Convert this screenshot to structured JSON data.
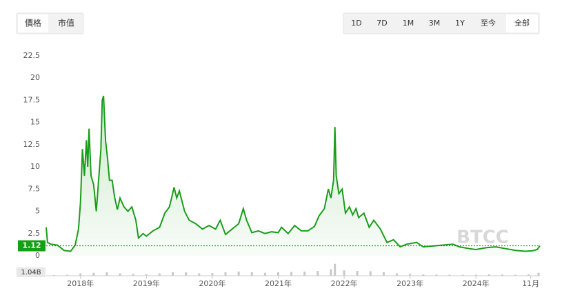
{
  "controls": {
    "left": [
      "價格",
      "市值"
    ],
    "right": [
      "1D",
      "7D",
      "1M",
      "3M",
      "1Y",
      "至今",
      "全部"
    ],
    "watermark": "BTCC"
  },
  "chart_data": [
    {
      "type": "line",
      "color": "#1a9c1a",
      "current_price": 1.12,
      "xlim": [
        2017.48,
        2024.97
      ],
      "xticks": [
        {
          "value": 2018,
          "label": "2018年"
        },
        {
          "value": 2019,
          "label": "2019年"
        },
        {
          "value": 2020,
          "label": "2020年"
        },
        {
          "value": 2021,
          "label": "2021年"
        },
        {
          "value": 2022,
          "label": "2022年"
        },
        {
          "value": 2023,
          "label": "2023年"
        },
        {
          "value": 2024,
          "label": "2024年"
        },
        {
          "value": 2024.83,
          "label": "11月"
        }
      ],
      "ylim": [
        0,
        22.5
      ],
      "yticks": [
        0,
        2.5,
        5,
        7.5,
        10,
        12.5,
        15,
        17.5,
        20,
        22.5
      ],
      "x": [
        2017.48,
        2017.5,
        2017.55,
        2017.65,
        2017.75,
        2017.85,
        2017.92,
        2017.97,
        2018.0,
        2018.03,
        2018.06,
        2018.09,
        2018.11,
        2018.13,
        2018.16,
        2018.2,
        2018.24,
        2018.28,
        2018.31,
        2018.33,
        2018.35,
        2018.38,
        2018.41,
        2018.44,
        2018.48,
        2018.52,
        2018.56,
        2018.6,
        2018.66,
        2018.72,
        2018.78,
        2018.84,
        2018.88,
        2018.95,
        2019.0,
        2019.1,
        2019.2,
        2019.28,
        2019.35,
        2019.42,
        2019.46,
        2019.5,
        2019.58,
        2019.65,
        2019.75,
        2019.85,
        2019.95,
        2020.05,
        2020.12,
        2020.2,
        2020.3,
        2020.4,
        2020.47,
        2020.52,
        2020.6,
        2020.7,
        2020.8,
        2020.9,
        2021.0,
        2021.05,
        2021.15,
        2021.25,
        2021.35,
        2021.45,
        2021.55,
        2021.62,
        2021.7,
        2021.76,
        2021.8,
        2021.84,
        2021.86,
        2021.88,
        2021.92,
        2021.97,
        2022.02,
        2022.08,
        2022.13,
        2022.18,
        2022.22,
        2022.3,
        2022.38,
        2022.45,
        2022.55,
        2022.65,
        2022.75,
        2022.85,
        2022.95,
        2023.1,
        2023.2,
        2023.35,
        2023.5,
        2023.65,
        2023.75,
        2023.9,
        2024.0,
        2024.15,
        2024.3,
        2024.45,
        2024.6,
        2024.75,
        2024.85,
        2024.93,
        2024.97
      ],
      "values": [
        3.2,
        1.5,
        1.3,
        1.2,
        0.6,
        0.5,
        1.2,
        3.0,
        6,
        12,
        9,
        13,
        10,
        14.3,
        9,
        8,
        5,
        9,
        12,
        17.5,
        18,
        13,
        11,
        8.5,
        8.5,
        6.5,
        5.2,
        6.5,
        5.5,
        5,
        5.5,
        4,
        2,
        2.5,
        2.2,
        2.8,
        3.2,
        4.8,
        5.5,
        7.7,
        6.5,
        7.3,
        5,
        4,
        3.6,
        3.0,
        3.4,
        3.0,
        4.0,
        2.4,
        3.0,
        3.6,
        5.3,
        4.0,
        2.6,
        2.8,
        2.5,
        2.7,
        2.6,
        3.2,
        2.5,
        3.4,
        2.8,
        2.8,
        3.3,
        4.5,
        5.3,
        7.5,
        6.5,
        8.5,
        14.5,
        9,
        7,
        7.5,
        4.8,
        5.5,
        4.6,
        5.3,
        4.3,
        4.8,
        3.2,
        4,
        3.0,
        1.5,
        1.8,
        1.0,
        1.3,
        1.5,
        1.0,
        1.1,
        1.2,
        1.3,
        1.0,
        0.8,
        0.7,
        0.9,
        1.0,
        0.8,
        0.6,
        0.5,
        0.55,
        0.7,
        1.12
      ]
    },
    {
      "type": "bar",
      "color": "#c8c8c8",
      "xlim": [
        2017.48,
        2024.97
      ],
      "ylim": [
        0,
        1040000000
      ],
      "yticks": [
        {
          "value": 1040000000,
          "label": "1.04B"
        }
      ],
      "x": [
        2017.6,
        2017.8,
        2018.0,
        2018.2,
        2018.4,
        2018.6,
        2018.8,
        2019.0,
        2019.2,
        2019.4,
        2019.6,
        2019.8,
        2020.0,
        2020.2,
        2020.4,
        2020.6,
        2020.8,
        2021.0,
        2021.2,
        2021.4,
        2021.6,
        2021.8,
        2021.86,
        2022.0,
        2022.2,
        2022.4,
        2022.6,
        2022.8,
        2023.0,
        2023.2,
        2023.4,
        2023.6,
        2023.8,
        2024.0,
        2024.2,
        2024.4,
        2024.6,
        2024.8,
        2024.95
      ],
      "values": [
        60000000,
        80000000,
        200000000,
        250000000,
        300000000,
        200000000,
        150000000,
        120000000,
        200000000,
        300000000,
        280000000,
        200000000,
        220000000,
        300000000,
        350000000,
        300000000,
        250000000,
        300000000,
        320000000,
        350000000,
        400000000,
        550000000,
        1000000000,
        450000000,
        400000000,
        380000000,
        300000000,
        200000000,
        150000000,
        120000000,
        100000000,
        90000000,
        80000000,
        90000000,
        120000000,
        100000000,
        80000000,
        120000000,
        250000000
      ]
    }
  ]
}
